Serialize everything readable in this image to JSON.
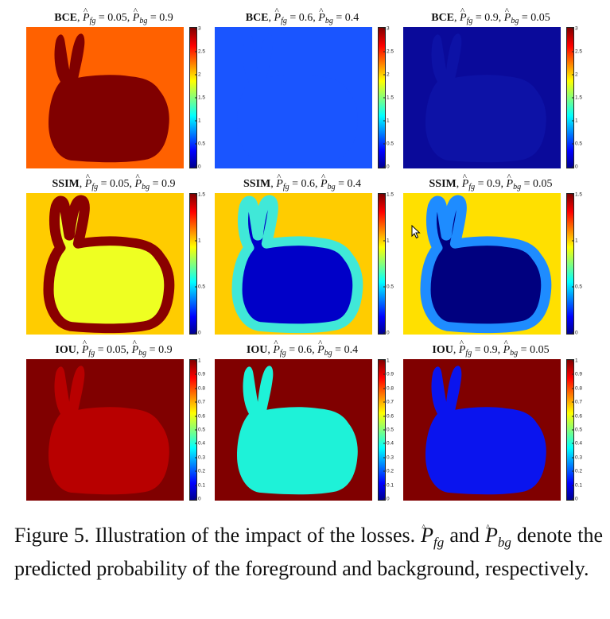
{
  "figure": {
    "panels": [
      {
        "loss": "BCE",
        "pfg": "0.05",
        "pbg": "0.9",
        "cmax": 3,
        "ticks": [
          "3",
          "2.5",
          "2",
          "1.5",
          "1",
          "0.5",
          "0"
        ],
        "bg": "#ff6100",
        "fg": "#800000",
        "ring": "",
        "style": "flat"
      },
      {
        "loss": "BCE",
        "pfg": "0.6",
        "pbg": "0.4",
        "cmax": 3,
        "ticks": [
          "3",
          "2.5",
          "2",
          "1.5",
          "1",
          "0.5",
          "0"
        ],
        "bg": "#1a55ff",
        "fg": "#1a55ff",
        "ring": "",
        "style": "flat"
      },
      {
        "loss": "BCE",
        "pfg": "0.9",
        "pbg": "0.05",
        "cmax": 3,
        "ticks": [
          "3",
          "2.5",
          "2",
          "1.5",
          "1",
          "0.5",
          "0"
        ],
        "bg": "#0a0a9a",
        "fg": "#0d12a6",
        "ring": "",
        "style": "flat"
      },
      {
        "loss": "SSIM",
        "pfg": "0.05",
        "pbg": "0.9",
        "cmax": 1.5,
        "ticks": [
          "1.5",
          "1",
          "0.5",
          "0"
        ],
        "bg": "#ffcc00",
        "fg": "#eeff22",
        "ring": "#8a0000",
        "style": "ring"
      },
      {
        "loss": "SSIM",
        "pfg": "0.6",
        "pbg": "0.4",
        "cmax": 1.5,
        "ticks": [
          "1.5",
          "1",
          "0.5",
          "0"
        ],
        "bg": "#ffcc00",
        "fg": "#0000c8",
        "ring": "#40e8d8",
        "style": "ring"
      },
      {
        "loss": "SSIM",
        "pfg": "0.9",
        "pbg": "0.05",
        "cmax": 1.5,
        "ticks": [
          "1.5",
          "1",
          "0.5",
          "0"
        ],
        "bg": "#ffe000",
        "fg": "#00007f",
        "ring": "#1e8cff",
        "style": "ring"
      },
      {
        "loss": "IOU",
        "pfg": "0.05",
        "pbg": "0.9",
        "cmax": 1,
        "ticks": [
          "1",
          "0.9",
          "0.8",
          "0.7",
          "0.6",
          "0.5",
          "0.4",
          "0.3",
          "0.2",
          "0.1",
          "0"
        ],
        "bg": "#800000",
        "fg": "#b80000",
        "ring": "",
        "style": "flat"
      },
      {
        "loss": "IOU",
        "pfg": "0.6",
        "pbg": "0.4",
        "cmax": 1,
        "ticks": [
          "1",
          "0.9",
          "0.8",
          "0.7",
          "0.6",
          "0.5",
          "0.4",
          "0.3",
          "0.2",
          "0.1",
          "0"
        ],
        "bg": "#800000",
        "fg": "#1ef2d8",
        "ring": "",
        "style": "flat"
      },
      {
        "loss": "IOU",
        "pfg": "0.9",
        "pbg": "0.05",
        "cmax": 1,
        "ticks": [
          "1",
          "0.9",
          "0.8",
          "0.7",
          "0.6",
          "0.5",
          "0.4",
          "0.3",
          "0.2",
          "0.1",
          "0"
        ],
        "bg": "#800000",
        "fg": "#0a14ee",
        "ring": "",
        "style": "flat"
      }
    ],
    "title_sep": ", ",
    "pfg_symbol": "P",
    "pfg_sub": "fg",
    "pbg_symbol": "P",
    "pbg_sub": "bg",
    "eq": " = "
  },
  "caption": {
    "lead": "Figure 5.  Illustration of the impact of the losses. ",
    "sym1": "P",
    "sub1": "fg",
    "mid1": " and ",
    "sym2": "P",
    "sub2": "bg",
    "tail": " denote the predicted probability of the foreground and background, respectively."
  }
}
